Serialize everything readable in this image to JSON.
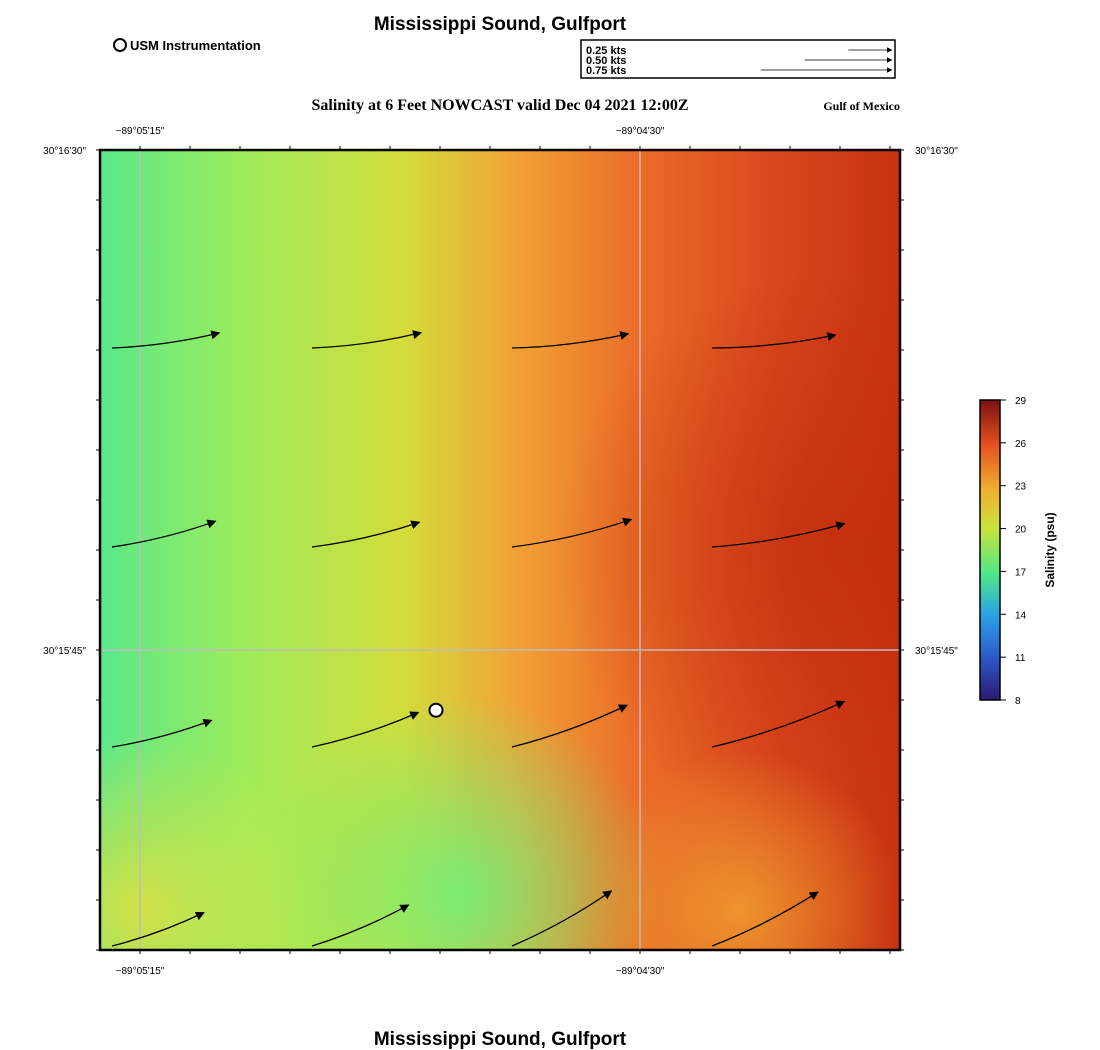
{
  "header": {
    "title": "Mississippi Sound, Gulfport",
    "legend_marker_label": "USM Instrumentation",
    "subtitle": "Salinity at 6 Feet NOWCAST valid Dec 04 2021 12:00Z",
    "region_label": "Gulf of Mexico"
  },
  "footer": {
    "title": "Mississippi Sound, Gulfport"
  },
  "vector_scale": {
    "items": [
      {
        "label": "0.25 kts",
        "speed": 0.25
      },
      {
        "label": "0.50 kts",
        "speed": 0.5
      },
      {
        "label": "0.75 kts",
        "speed": 0.75
      }
    ]
  },
  "axes": {
    "lon_ticks": [
      "−89°05'15\"",
      "−89°04'30\""
    ],
    "lat_ticks": [
      "30°16'30\"",
      "30°15'45\""
    ]
  },
  "colorbar": {
    "label": "Salinity (psu)",
    "min": 8,
    "max": 29,
    "ticks": [
      "29",
      "26",
      "23",
      "20",
      "17",
      "14",
      "11",
      "8"
    ]
  },
  "colors": {
    "low": "#2a1a6e",
    "mid_low": "#2aa0e8",
    "mid": "#4ee88a",
    "mid_high": "#e8d838",
    "high": "#e8502a",
    "max": "#7a1010"
  },
  "chart_data": {
    "type": "vector-field",
    "title": "Salinity at 6 Feet NOWCAST valid Dec 04 2021 12:00Z",
    "variable": "Salinity (psu)",
    "range": [
      8,
      29
    ],
    "salinity_grid_note": "approximate salinity: ~17-18 west, ~20-21 center, ~23-24 center-east, ~26-27 east",
    "vectors": [
      {
        "row": 1,
        "col": 1,
        "speed": 0.62,
        "direction_deg": 82
      },
      {
        "row": 1,
        "col": 2,
        "speed": 0.63,
        "direction_deg": 82
      },
      {
        "row": 1,
        "col": 3,
        "speed": 0.67,
        "direction_deg": 83
      },
      {
        "row": 1,
        "col": 4,
        "speed": 0.71,
        "direction_deg": 84
      },
      {
        "row": 2,
        "col": 1,
        "speed": 0.61,
        "direction_deg": 76
      },
      {
        "row": 2,
        "col": 2,
        "speed": 0.63,
        "direction_deg": 77
      },
      {
        "row": 2,
        "col": 3,
        "speed": 0.7,
        "direction_deg": 77
      },
      {
        "row": 2,
        "col": 4,
        "speed": 0.77,
        "direction_deg": 80
      },
      {
        "row": 3,
        "col": 1,
        "speed": 0.59,
        "direction_deg": 75
      },
      {
        "row": 3,
        "col": 2,
        "speed": 0.64,
        "direction_deg": 72
      },
      {
        "row": 3,
        "col": 3,
        "speed": 0.7,
        "direction_deg": 70
      },
      {
        "row": 3,
        "col": 4,
        "speed": 0.8,
        "direction_deg": 71
      },
      {
        "row": 4,
        "col": 1,
        "speed": 0.56,
        "direction_deg": 70
      },
      {
        "row": 4,
        "col": 2,
        "speed": 0.6,
        "direction_deg": 67
      },
      {
        "row": 4,
        "col": 3,
        "speed": 0.65,
        "direction_deg": 61
      },
      {
        "row": 4,
        "col": 4,
        "speed": 0.68,
        "direction_deg": 63
      }
    ],
    "stations": [
      {
        "name": "USM Instrumentation",
        "lon_frac": 0.42,
        "lat_frac": 0.7
      }
    ]
  }
}
